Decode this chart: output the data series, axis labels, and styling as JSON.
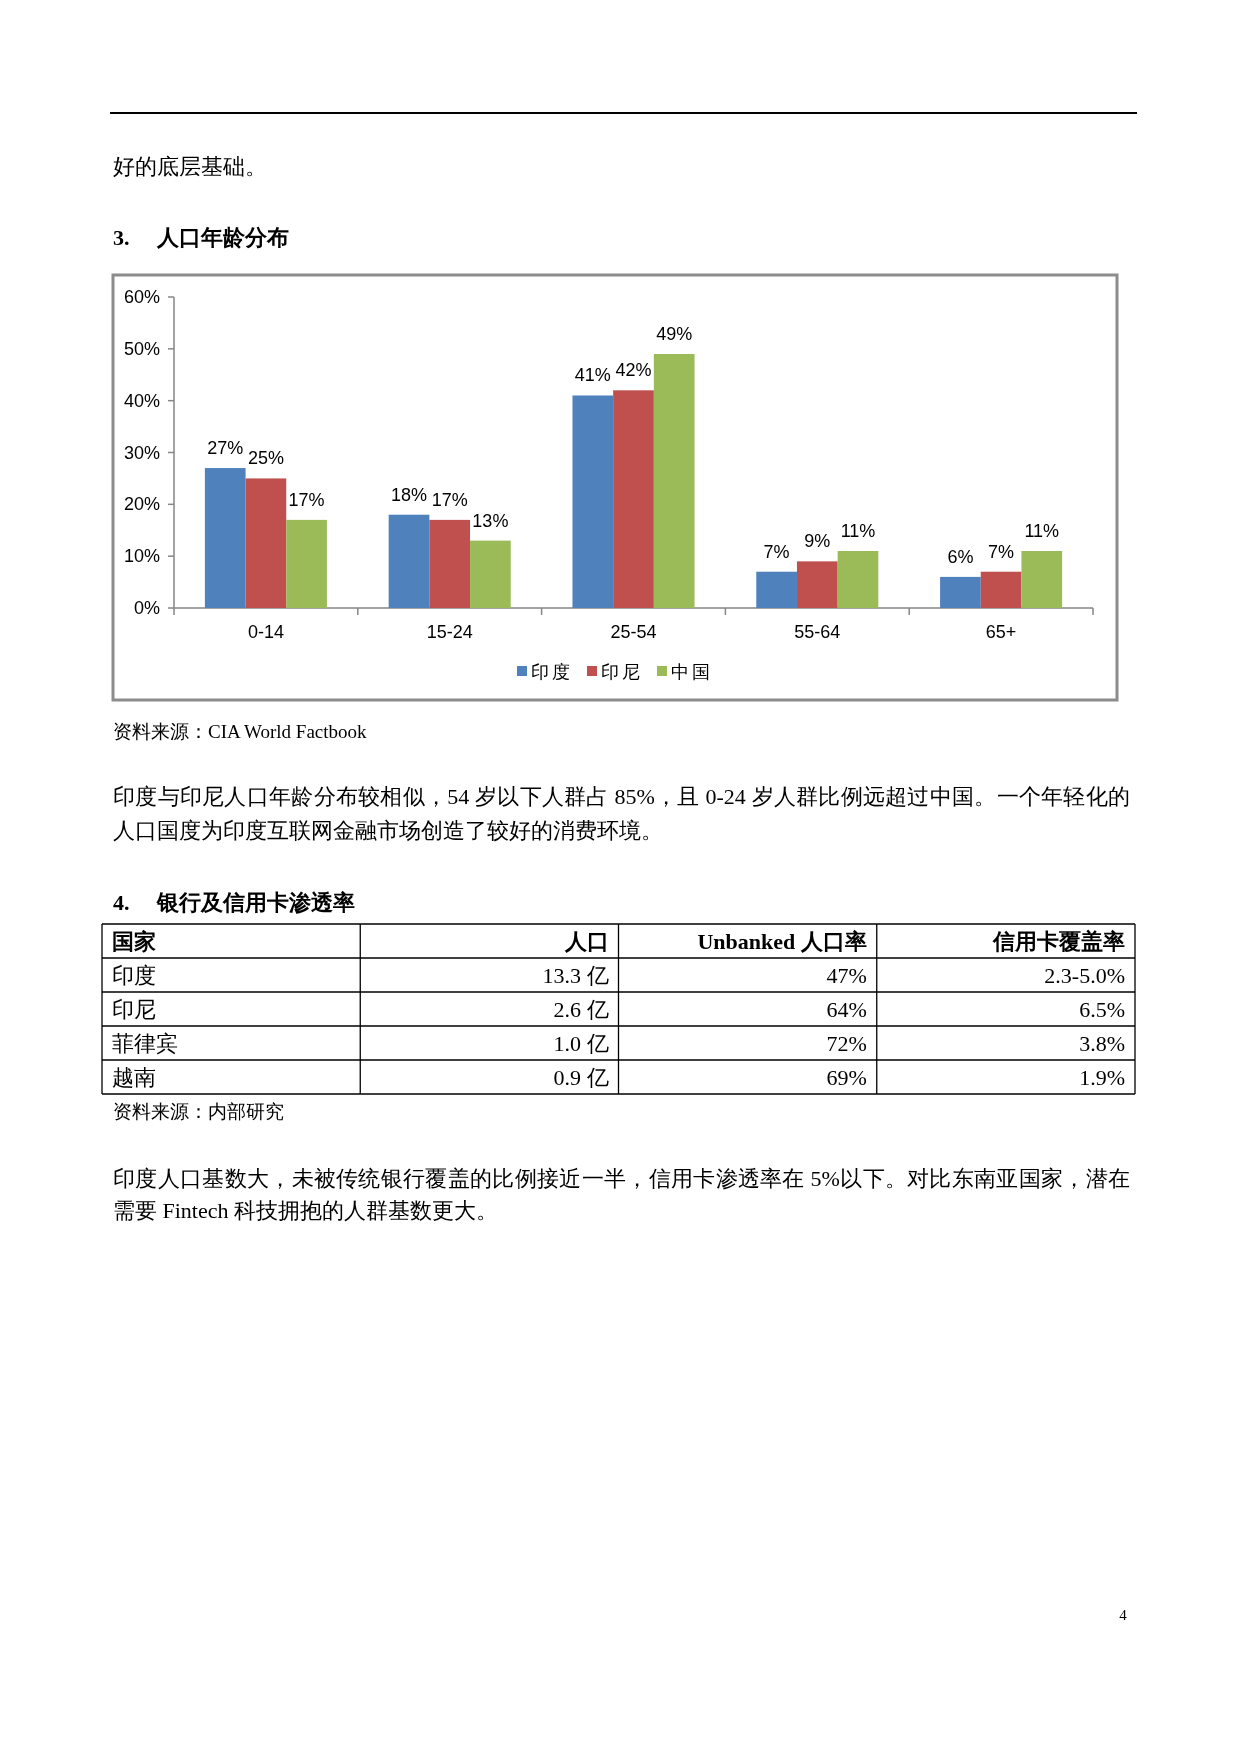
{
  "chart_data": [
    {
      "type": "bar",
      "title": "3. 人口年龄分布",
      "categories": [
        "0-14",
        "15-24",
        "25-54",
        "55-64",
        "65+"
      ],
      "series": [
        {
          "name": "印度",
          "color": "#4f81bd",
          "values": [
            27,
            18,
            41,
            7,
            6
          ],
          "value_labels": [
            "27%",
            "18%",
            "41%",
            "7%",
            "6%"
          ]
        },
        {
          "name": "印尼",
          "color": "#c0504d",
          "values": [
            25,
            17,
            42,
            9,
            7
          ],
          "value_labels": [
            "25%",
            "17%",
            "42%",
            "9%",
            "7%"
          ]
        },
        {
          "name": "中国",
          "color": "#9bbb59",
          "values": [
            17,
            13,
            49,
            11,
            11
          ],
          "value_labels": [
            "17%",
            "13%",
            "49%",
            "11%",
            "11%"
          ]
        }
      ],
      "ylim": [
        0,
        60
      ],
      "yticks": [
        {
          "value": 0,
          "label": "0%"
        },
        {
          "value": 10,
          "label": "10%"
        },
        {
          "value": 20,
          "label": "20%"
        },
        {
          "value": 30,
          "label": "30%"
        },
        {
          "value": 40,
          "label": "40%"
        },
        {
          "value": 50,
          "label": "50%"
        },
        {
          "value": 60,
          "label": "60%"
        }
      ],
      "legend": "bottom",
      "annotations": [
        "好的底层基础。",
        "资料来源：CIA World Factbook",
        "印度与印尼人口年龄分布较相似，54 岁以下人群占 85%，且 0-24 岁人群比例远超过中国。一个年轻化的人口国度为印度互联网金融市场创造了较好的消费环境。"
      ]
    },
    {
      "type": "other",
      "title": "4. 银行及信用卡渗透率",
      "ylabel": "国家",
      "categories": [
        "人口",
        "Unbanked 人口率",
        "信用卡覆盖率"
      ],
      "y_categories": [
        "印度",
        "印尼",
        "菲律宾",
        "越南"
      ],
      "cell_labels": [
        [
          "13.3 亿",
          "47%",
          "2.3-5.0%"
        ],
        [
          "2.6 亿",
          "64%",
          "6.5%"
        ],
        [
          "1.0 亿",
          "72%",
          "3.8%"
        ],
        [
          "0.9 亿",
          "69%",
          "1.9%"
        ]
      ],
      "annotations": [
        "资料来源：内部研究",
        "印度人口基数大，未被传统银行覆盖的比例接近一半，信用卡渗透率在 5%以下。对比东南亚国家，潜在需要 Fintech 科技拥抱的人群基数更大。",
        "4"
      ]
    }
  ]
}
